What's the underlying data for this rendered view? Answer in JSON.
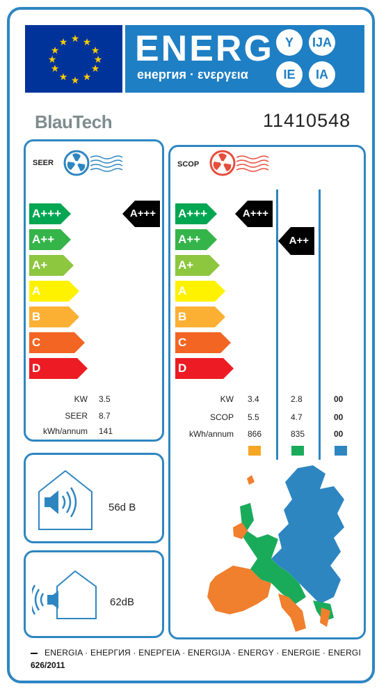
{
  "header": {
    "title": "ENERG",
    "subtitle": "енергия · ενεργεια",
    "lang_codes": [
      "Y",
      "IJA",
      "IE",
      "IA"
    ]
  },
  "brand": "BlauTech",
  "model": "11410548",
  "scale_labels": [
    "A+++",
    "A++",
    "A+",
    "A",
    "B",
    "C",
    "D"
  ],
  "scale_colors": [
    "#00a651",
    "#35b44a",
    "#8dc63f",
    "#fff200",
    "#fbb034",
    "#f26522",
    "#ed1c24"
  ],
  "cooling": {
    "title": "SEER",
    "class_label": "A+++",
    "rows": [
      {
        "label": "KW",
        "value": "3.5"
      },
      {
        "label": "SEER",
        "value": "8.7"
      },
      {
        "label": "kWh/annum",
        "value": "141"
      }
    ]
  },
  "heating": {
    "title": "SCOP",
    "class_labels": [
      "A+++",
      "A++"
    ],
    "rows": [
      {
        "label": "KW",
        "values": [
          "3.4",
          "2.8",
          "00"
        ]
      },
      {
        "label": "SCOP",
        "values": [
          "5.5",
          "4.7",
          "00"
        ]
      },
      {
        "label": "kWh/annum",
        "values": [
          "866",
          "835",
          "00"
        ]
      }
    ],
    "season_colors": [
      "#f5a623",
      "#1aab5a",
      "#2e86c1"
    ]
  },
  "noise": {
    "indoor": "56d B",
    "outdoor": "62dB"
  },
  "footer": {
    "langs": "ENERGIA · ЕНЕРГИЯ · ΕΝΕΡΓΕΙΑ · ENERGIJA · ENERGY · ENERGIE · ENERGI",
    "regulation": "626/2011"
  }
}
